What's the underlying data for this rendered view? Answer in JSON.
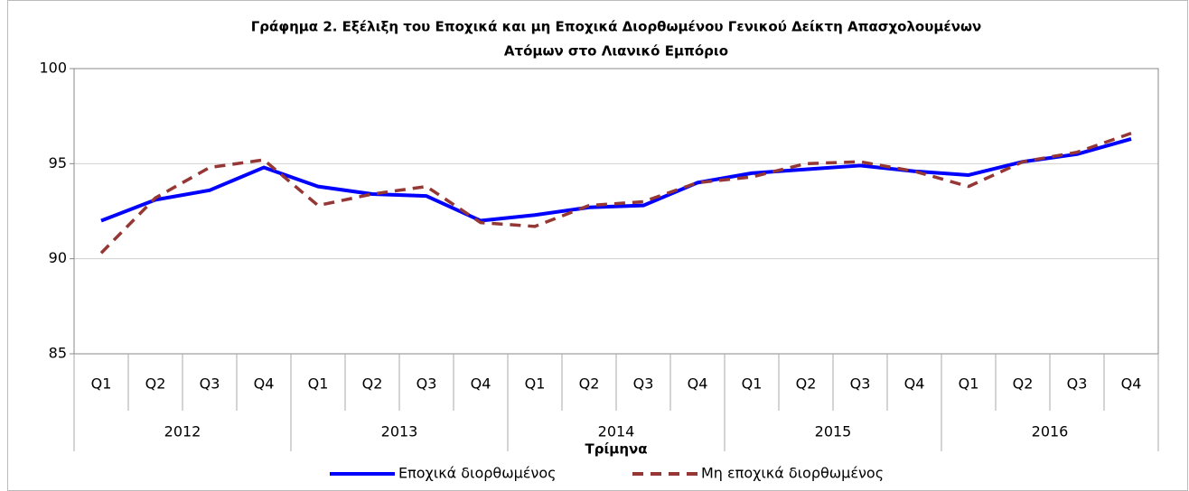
{
  "chart_data": {
    "type": "line",
    "title": [
      "Γράφημα 2. Εξέλιξη του Εποχικά και μη Εποχικά Διορθωμένου Γενικού Δείκτη Απασχολουμένων",
      "Ατόμων στο Λιανικό Εμπόριο"
    ],
    "x_label": "Τρίμηνα",
    "categories": [
      "Q1",
      "Q2",
      "Q3",
      "Q4",
      "Q1",
      "Q2",
      "Q3",
      "Q4",
      "Q1",
      "Q2",
      "Q3",
      "Q4",
      "Q1",
      "Q2",
      "Q3",
      "Q4",
      "Q1",
      "Q2",
      "Q3",
      "Q4"
    ],
    "category_groups": [
      "2012",
      "2013",
      "2014",
      "2015",
      "2016"
    ],
    "series": [
      {
        "name": "Εποχικά διορθωμένος",
        "color": "#0000ff",
        "dash": false,
        "values": [
          92.0,
          93.1,
          93.6,
          94.8,
          93.8,
          93.4,
          93.3,
          92.0,
          92.3,
          92.7,
          92.8,
          94.0,
          94.5,
          94.7,
          94.9,
          94.6,
          94.4,
          95.1,
          95.5,
          96.3
        ]
      },
      {
        "name": "Μη εποχικά διορθωμένος",
        "color": "#953735",
        "dash": true,
        "values": [
          90.3,
          93.2,
          94.8,
          95.2,
          92.8,
          93.4,
          93.8,
          91.9,
          91.7,
          92.8,
          93.0,
          94.0,
          94.3,
          95.0,
          95.1,
          94.6,
          93.8,
          95.1,
          95.6,
          96.6
        ]
      }
    ],
    "ylim": [
      85,
      100
    ],
    "yticks": [
      85,
      90,
      95,
      100
    ],
    "grid": true,
    "legend": "bottom"
  }
}
